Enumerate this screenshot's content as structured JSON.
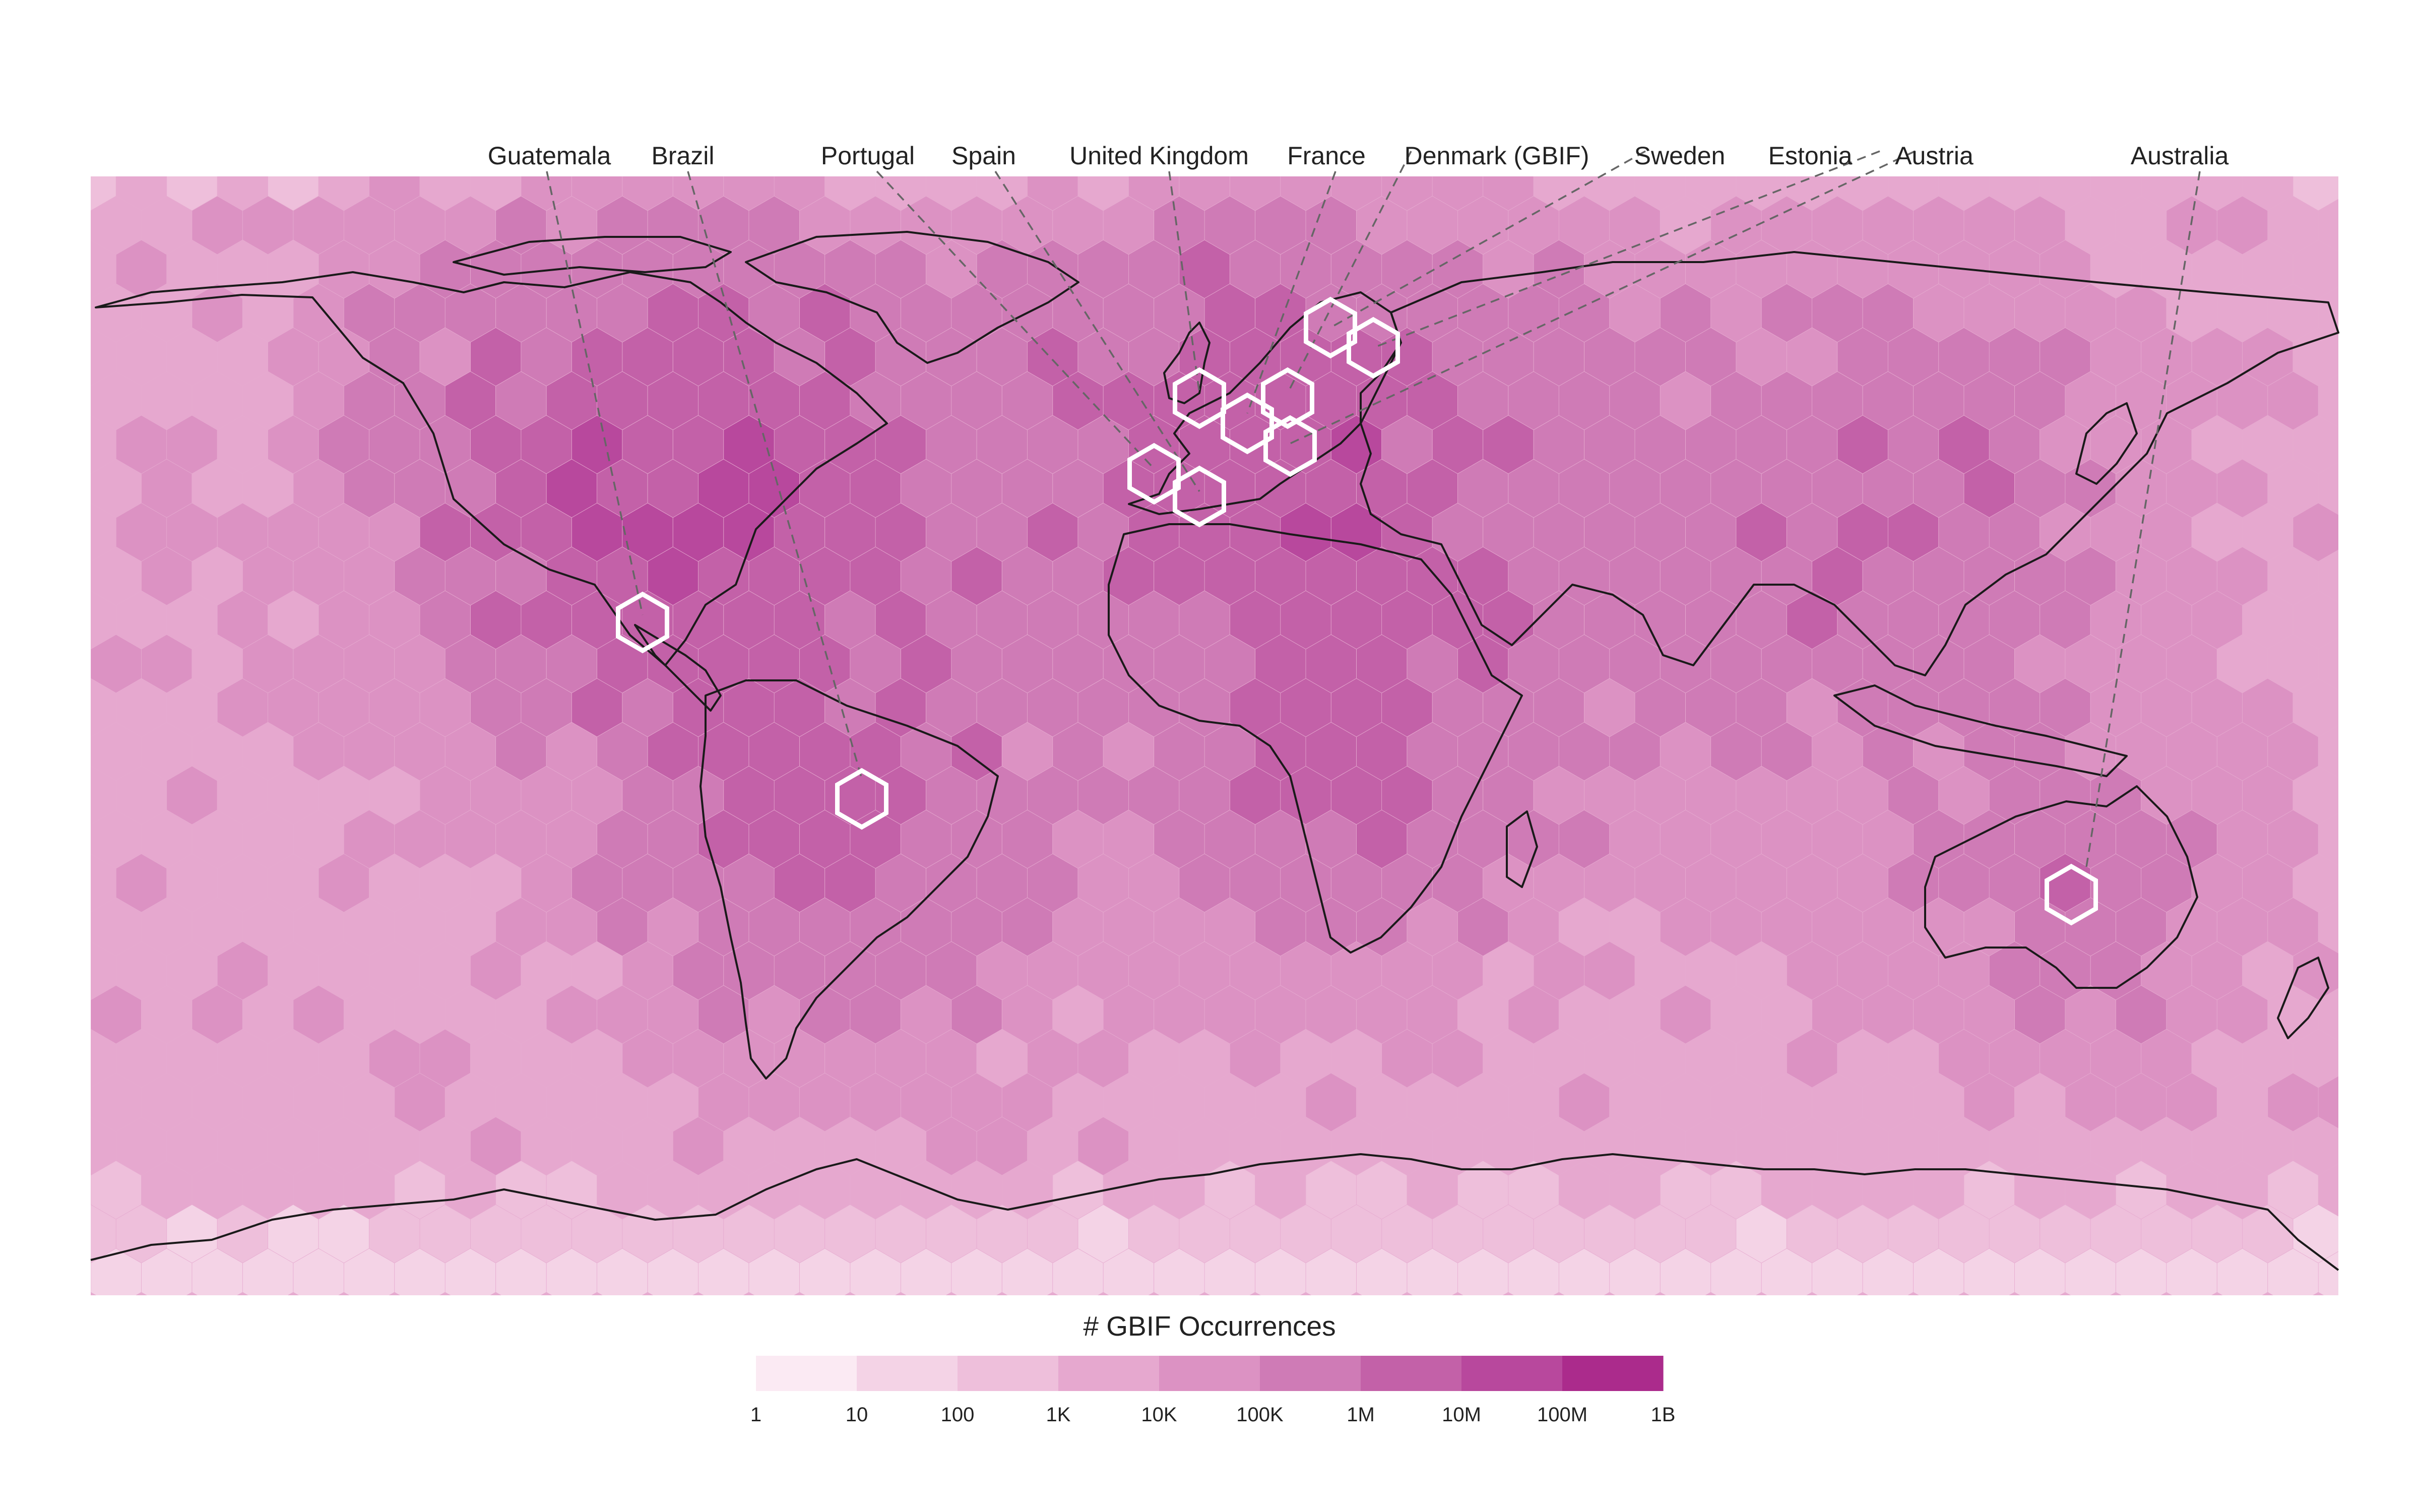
{
  "map": {
    "fill_color": "#eeb6d8",
    "coast_color": "#1a1a1a",
    "highlight_color": "#ffffff"
  },
  "country_labels": [
    {
      "id": "guatemala",
      "text": "Guatemala"
    },
    {
      "id": "brazil",
      "text": "Brazil"
    },
    {
      "id": "portugal",
      "text": "Portugal"
    },
    {
      "id": "spain",
      "text": "Spain"
    },
    {
      "id": "united-kingdom",
      "text": "United Kingdom"
    },
    {
      "id": "france",
      "text": "France"
    },
    {
      "id": "denmark",
      "text": "Denmark (GBIF)"
    },
    {
      "id": "sweden",
      "text": "Sweden"
    },
    {
      "id": "estonia",
      "text": "Estonia"
    },
    {
      "id": "austria",
      "text": "Austria"
    },
    {
      "id": "australia",
      "text": "Australia"
    }
  ],
  "legend": {
    "title": "# GBIF Occurrences",
    "ticks": [
      "1",
      "10",
      "100",
      "1K",
      "10K",
      "100K",
      "1M",
      "10M",
      "100M",
      "1B"
    ],
    "colors": [
      "#fbeaf3",
      "#f4d3e6",
      "#eebfdb",
      "#e6a8cf",
      "#dc92c3",
      "#cf7bb6",
      "#c361a8",
      "#b8489d",
      "#ab2b8c"
    ]
  }
}
